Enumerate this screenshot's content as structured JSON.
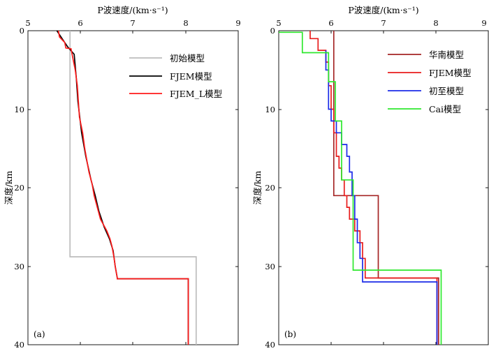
{
  "figure": {
    "colors": {
      "initial": "#bdbdbd",
      "fjem": "#000000",
      "fjem_l": "#ff1a1a",
      "huanan": "#a52525",
      "fjem_b": "#e81c1c",
      "chuzhi": "#1c2be8",
      "cai": "#2ee82e"
    }
  },
  "chart_data": [
    {
      "type": "line",
      "panel_label": "(a)",
      "title": "P波速度/(km·s⁻¹)",
      "xlabel": "P波速度/(km·s⁻¹)",
      "ylabel": "深度/km",
      "xlim": [
        5,
        9
      ],
      "ylim": [
        0,
        40
      ],
      "x_ticks": [
        "5",
        "6",
        "7",
        "8",
        "9"
      ],
      "y_ticks": [
        "0",
        "10",
        "20",
        "30",
        "40"
      ],
      "legend_position": "top-right",
      "series": [
        {
          "name": "初始模型",
          "color_key": "initial",
          "step": true,
          "x": [
            5.8,
            5.8,
            8.2,
            8.2
          ],
          "y": [
            0,
            28.8,
            28.8,
            40
          ]
        },
        {
          "name": "FJEM模型",
          "color_key": "fjem",
          "step": false,
          "x": [
            5.55,
            5.65,
            5.75,
            5.88,
            5.92,
            5.95,
            6.02,
            6.1,
            6.2,
            6.28,
            6.35,
            6.45,
            6.55,
            6.62,
            6.66,
            6.7,
            6.7,
            8.05,
            8.05
          ],
          "y": [
            0,
            1,
            2,
            3,
            6,
            9,
            13,
            16,
            19,
            21,
            23,
            25,
            26.5,
            28,
            30,
            31.5,
            31.6,
            31.6,
            40
          ]
        },
        {
          "name": "FJEM_L模型",
          "color_key": "fjem_l",
          "step": false,
          "x": [
            5.58,
            5.6,
            5.7,
            5.72,
            5.82,
            5.84,
            5.9,
            5.94,
            5.96,
            5.98,
            6.04,
            6.08,
            6.12,
            6.16,
            6.22,
            6.26,
            6.3,
            6.34,
            6.38,
            6.46,
            6.5,
            6.56,
            6.6,
            6.64,
            6.66,
            6.7,
            6.7,
            8.05,
            8.05
          ],
          "y": [
            0,
            0.8,
            1.5,
            2.2,
            2.3,
            3,
            5,
            7,
            9,
            11,
            13,
            15,
            16.5,
            18,
            19.5,
            21,
            22,
            23,
            24,
            25,
            25.5,
            26.5,
            27.5,
            29,
            30,
            31.5,
            31.6,
            31.6,
            40
          ]
        }
      ]
    },
    {
      "type": "line",
      "panel_label": "(b)",
      "title": "P波速度/(km·s⁻¹)",
      "xlabel": "P波速度/(km·s⁻¹)",
      "ylabel": "深度/km",
      "xlim": [
        5,
        9
      ],
      "ylim": [
        0,
        40
      ],
      "x_ticks": [
        "5",
        "6",
        "7",
        "8",
        "9"
      ],
      "y_ticks": [
        "0",
        "10",
        "20",
        "30",
        "40"
      ],
      "legend_position": "top-right",
      "series": [
        {
          "name": "华南模型",
          "color_key": "huanan",
          "step": true,
          "x": [
            6.05,
            6.05,
            6.9,
            6.9,
            8.05,
            8.05
          ],
          "y": [
            0,
            21,
            21,
            31.5,
            31.5,
            40
          ]
        },
        {
          "name": "FJEM模型",
          "color_key": "fjem_b",
          "step": true,
          "x": [
            5.6,
            5.6,
            5.75,
            5.75,
            5.9,
            5.9,
            5.95,
            5.95,
            6.0,
            6.0,
            6.05,
            6.05,
            6.1,
            6.1,
            6.15,
            6.15,
            6.2,
            6.2,
            6.25,
            6.25,
            6.3,
            6.3,
            6.35,
            6.35,
            6.45,
            6.45,
            6.55,
            6.55,
            6.6,
            6.6,
            6.65,
            6.65,
            8.02,
            8.02
          ],
          "y": [
            0,
            1,
            1,
            2.5,
            2.5,
            4,
            4,
            7,
            7,
            10,
            10,
            13,
            13,
            16,
            16,
            17.5,
            17.5,
            19,
            19,
            21,
            21,
            22.5,
            22.5,
            24,
            24,
            25.5,
            25.5,
            27,
            27,
            29,
            29,
            31.5,
            31.5,
            40
          ]
        },
        {
          "name": "初至模型",
          "color_key": "chuzhi",
          "step": true,
          "x": [
            5.9,
            5.9,
            5.95,
            5.95,
            6.0,
            6.0,
            6.1,
            6.1,
            6.2,
            6.2,
            6.3,
            6.3,
            6.35,
            6.35,
            6.4,
            6.4,
            6.45,
            6.45,
            6.5,
            6.5,
            6.55,
            6.55,
            6.6,
            6.6,
            8.02,
            8.02
          ],
          "y": [
            2.5,
            5,
            5,
            10,
            10,
            11.5,
            11.5,
            13,
            13,
            14.5,
            14.5,
            16,
            16,
            18,
            18,
            21,
            21,
            24,
            24,
            27,
            27,
            29,
            29,
            32,
            32,
            40
          ]
        },
        {
          "name": "Cai模型",
          "color_key": "cai",
          "step": true,
          "x": [
            5,
            5,
            5.45,
            5.45,
            5.95,
            5.95,
            6.08,
            6.08,
            6.2,
            6.2,
            6.42,
            6.42,
            8.1,
            8.1
          ],
          "y": [
            0.2,
            0.2,
            0.2,
            2.8,
            2.8,
            6.5,
            6.5,
            11.5,
            11.5,
            19,
            19,
            30.5,
            30.5,
            40
          ]
        }
      ]
    }
  ]
}
